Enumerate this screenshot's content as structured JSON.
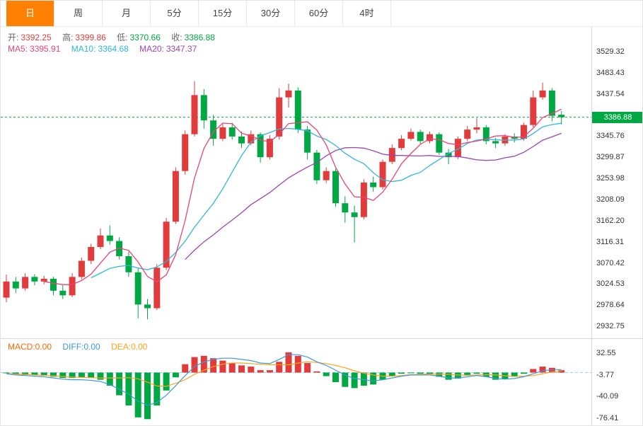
{
  "tabs": [
    {
      "label": "日",
      "active": true
    },
    {
      "label": "周",
      "active": false
    },
    {
      "label": "月",
      "active": false
    },
    {
      "label": "5分",
      "active": false
    },
    {
      "label": "15分",
      "active": false
    },
    {
      "label": "30分",
      "active": false
    },
    {
      "label": "60分",
      "active": false
    },
    {
      "label": "4时",
      "active": false
    }
  ],
  "ohlc": {
    "open_label": "开:",
    "open": "3392.25",
    "high_label": "高:",
    "high": "3399.86",
    "low_label": "低:",
    "low": "3370.66",
    "close_label": "收:",
    "close": "3386.88"
  },
  "ma": {
    "ma5_label": "MA5:",
    "ma5": "3395.91",
    "ma10_label": "MA10:",
    "ma10": "3364.68",
    "ma20_label": "MA20:",
    "ma20": "3347.37"
  },
  "macd_header": {
    "macd_label": "MACD:",
    "macd": "0.00",
    "diff_label": "DIFF:",
    "diff": "0.00",
    "dea_label": "DEA:",
    "dea": "0.00"
  },
  "colors": {
    "up": "#e23b3b",
    "down": "#00a843",
    "ma5": "#e8447a",
    "ma10": "#2fb8d8",
    "ma20": "#9b45b2",
    "diff": "#3a9ad9",
    "dea": "#ffa21a",
    "tab_accent": "#fe8104",
    "badge": "#00a843",
    "zero_line": "#9fd0e8"
  },
  "chart_data": [
    {
      "type": "candlestick",
      "title": "",
      "ylim": [
        2905,
        3582
      ],
      "grid": false,
      "y_axis_labels": [
        "3529.32",
        "3483.43",
        "3437.54",
        "3345.76",
        "3299.87",
        "3253.98",
        "3208.09",
        "3162.20",
        "3116.31",
        "3070.42",
        "3024.53",
        "2978.64",
        "2932.75"
      ],
      "current_price": 3386.88,
      "current_price_label": "3386.88",
      "overlays": [
        "MA5",
        "MA10",
        "MA20"
      ],
      "candles": [
        [
          2995,
          3045,
          2985,
          3030
        ],
        [
          3030,
          3040,
          3005,
          3015
        ],
        [
          3015,
          3048,
          3010,
          3040
        ],
        [
          3040,
          3046,
          3022,
          3030
        ],
        [
          3030,
          3042,
          3024,
          3036
        ],
        [
          3036,
          3040,
          3000,
          3010
        ],
        [
          3010,
          3022,
          2992,
          3000
        ],
        [
          3000,
          3048,
          2996,
          3040
        ],
        [
          3040,
          3082,
          3035,
          3075
        ],
        [
          3075,
          3112,
          3068,
          3105
        ],
        [
          3105,
          3145,
          3100,
          3130
        ],
        [
          3130,
          3152,
          3110,
          3118
        ],
        [
          3118,
          3126,
          3078,
          3085
        ],
        [
          3085,
          3095,
          3040,
          3050
        ],
        [
          3050,
          3058,
          2950,
          2980
        ],
        [
          2980,
          2992,
          2948,
          2972
        ],
        [
          2972,
          3068,
          2968,
          3060
        ],
        [
          3060,
          3168,
          3055,
          3160
        ],
        [
          3160,
          3278,
          3155,
          3270
        ],
        [
          3270,
          3358,
          3262,
          3350
        ],
        [
          3350,
          3465,
          3345,
          3435
        ],
        [
          3435,
          3448,
          3362,
          3380
        ],
        [
          3380,
          3392,
          3325,
          3340
        ],
        [
          3340,
          3372,
          3335,
          3365
        ],
        [
          3365,
          3375,
          3338,
          3345
        ],
        [
          3345,
          3356,
          3320,
          3330
        ],
        [
          3330,
          3358,
          3326,
          3350
        ],
        [
          3350,
          3354,
          3288,
          3300
        ],
        [
          3300,
          3348,
          3295,
          3340
        ],
        [
          3345,
          3450,
          3338,
          3430
        ],
        [
          3430,
          3460,
          3408,
          3445
        ],
        [
          3445,
          3452,
          3352,
          3360
        ],
        [
          3360,
          3368,
          3295,
          3310
        ],
        [
          3310,
          3316,
          3242,
          3250
        ],
        [
          3250,
          3278,
          3244,
          3270
        ],
        [
          3270,
          3275,
          3192,
          3200
        ],
        [
          3200,
          3215,
          3158,
          3180
        ],
        [
          3180,
          3195,
          3115,
          3170
        ],
        [
          3170,
          3252,
          3165,
          3245
        ],
        [
          3245,
          3258,
          3225,
          3235
        ],
        [
          3235,
          3295,
          3230,
          3290
        ],
        [
          3290,
          3328,
          3285,
          3320
        ],
        [
          3320,
          3348,
          3315,
          3340
        ],
        [
          3340,
          3362,
          3336,
          3355
        ],
        [
          3355,
          3360,
          3328,
          3335
        ],
        [
          3335,
          3356,
          3330,
          3350
        ],
        [
          3350,
          3354,
          3305,
          3310
        ],
        [
          3310,
          3318,
          3285,
          3300
        ],
        [
          3300,
          3345,
          3296,
          3340
        ],
        [
          3340,
          3368,
          3335,
          3360
        ],
        [
          3360,
          3385,
          3352,
          3365
        ],
        [
          3365,
          3370,
          3328,
          3335
        ],
        [
          3335,
          3342,
          3320,
          3330
        ],
        [
          3330,
          3350,
          3325,
          3345
        ],
        [
          3345,
          3352,
          3332,
          3340
        ],
        [
          3340,
          3375,
          3336,
          3370
        ],
        [
          3370,
          3445,
          3365,
          3430
        ],
        [
          3430,
          3462,
          3425,
          3445
        ],
        [
          3445,
          3450,
          3378,
          3390
        ],
        [
          3392.25,
          3399.86,
          3370.66,
          3386.88
        ]
      ]
    },
    {
      "type": "bar",
      "title": "MACD",
      "ylim": [
        -91,
        56
      ],
      "y_axis_labels": [
        "32.55",
        "-3.77",
        "-40.09",
        "-76.41"
      ],
      "hist": [
        -1,
        -3,
        -4,
        -4,
        -5,
        -7,
        -9,
        -9,
        -8,
        -9,
        -12,
        -22,
        -38,
        -55,
        -75,
        -78,
        -55,
        -30,
        -8,
        14,
        26,
        28,
        24,
        20,
        16,
        12,
        10,
        4,
        4,
        18,
        34,
        28,
        16,
        2,
        -6,
        -16,
        -24,
        -26,
        -22,
        -20,
        -12,
        -6,
        -2,
        -1,
        -2,
        -3,
        -7,
        -12,
        -10,
        -5,
        -2,
        -7,
        -12,
        -11,
        -7,
        -2,
        6,
        10,
        8,
        4
      ],
      "diff": [
        -2,
        -4,
        -5,
        -6,
        -7,
        -9,
        -11,
        -12,
        -12,
        -13,
        -15,
        -20,
        -28,
        -36,
        -48,
        -55,
        -50,
        -38,
        -22,
        -5,
        10,
        18,
        22,
        24,
        24,
        22,
        20,
        16,
        15,
        22,
        30,
        30,
        26,
        18,
        12,
        4,
        -4,
        -10,
        -12,
        -14,
        -12,
        -9,
        -6,
        -4,
        -4,
        -4,
        -6,
        -9,
        -9,
        -7,
        -5,
        -7,
        -10,
        -11,
        -10,
        -7,
        -2,
        3,
        5,
        5
      ],
      "dea": [
        -1.5,
        -2.5,
        -3,
        -4,
        -4.5,
        -5.5,
        -6.5,
        -7.5,
        -8,
        -8.5,
        -9,
        -9,
        -9,
        -8.5,
        -10.5,
        -16,
        -22.5,
        -23,
        -18,
        -12,
        -3,
        4,
        10,
        14,
        16,
        16,
        15,
        14,
        13,
        13,
        13,
        16,
        18,
        17,
        15,
        12,
        8,
        3,
        -1,
        -4,
        -6,
        -6,
        -5,
        -3.5,
        -3,
        -2.5,
        -2.5,
        -3,
        -4,
        -4.5,
        -4,
        -3.5,
        -4,
        -5.5,
        -6.5,
        -6,
        -5,
        -2,
        1,
        3
      ]
    }
  ]
}
